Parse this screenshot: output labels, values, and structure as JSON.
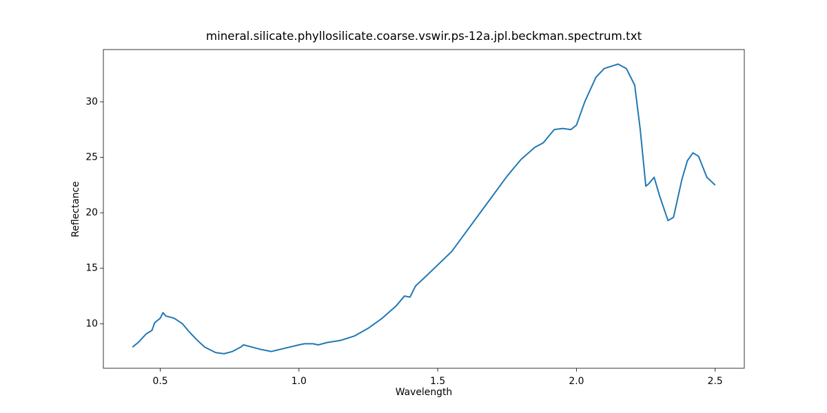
{
  "chart_data": {
    "type": "line",
    "title": "mineral.silicate.phyllosilicate.coarse.vswir.ps-12a.jpl.beckman.spectrum.txt",
    "x_label": "Wavelength",
    "y_label": "Reflectance",
    "x": [
      0.4,
      0.42,
      0.45,
      0.47,
      0.48,
      0.5,
      0.51,
      0.52,
      0.55,
      0.58,
      0.6,
      0.63,
      0.66,
      0.7,
      0.73,
      0.76,
      0.79,
      0.8,
      0.83,
      0.86,
      0.9,
      0.95,
      1.0,
      1.02,
      1.05,
      1.07,
      1.1,
      1.15,
      1.2,
      1.25,
      1.3,
      1.35,
      1.38,
      1.4,
      1.42,
      1.45,
      1.5,
      1.55,
      1.6,
      1.65,
      1.7,
      1.75,
      1.8,
      1.85,
      1.88,
      1.92,
      1.95,
      1.98,
      2.0,
      2.03,
      2.07,
      2.1,
      2.15,
      2.18,
      2.21,
      2.23,
      2.25,
      2.26,
      2.28,
      2.3,
      2.33,
      2.35,
      2.38,
      2.4,
      2.42,
      2.44,
      2.47,
      2.5
    ],
    "series": [
      {
        "name": "Reflectance",
        "color": "#1f77b4",
        "values": [
          7.9,
          8.3,
          9.1,
          9.4,
          10.1,
          10.5,
          11.0,
          10.7,
          10.5,
          10.0,
          9.4,
          8.6,
          7.9,
          7.4,
          7.3,
          7.5,
          7.9,
          8.1,
          7.9,
          7.7,
          7.5,
          7.8,
          8.1,
          8.2,
          8.2,
          8.1,
          8.3,
          8.5,
          8.9,
          9.6,
          10.5,
          11.6,
          12.5,
          12.4,
          13.4,
          14.1,
          15.3,
          16.5,
          18.2,
          19.9,
          21.6,
          23.3,
          24.8,
          25.9,
          26.3,
          27.5,
          27.6,
          27.5,
          27.9,
          30.0,
          32.2,
          33.0,
          33.4,
          33.0,
          31.5,
          27.5,
          22.4,
          22.6,
          23.2,
          21.5,
          19.3,
          19.6,
          23.0,
          24.7,
          25.4,
          25.1,
          23.2,
          22.5
        ]
      }
    ],
    "xlim": [
      0.295,
      2.605
    ],
    "ylim": [
      5.99,
      34.71
    ],
    "xticks": [
      0.5,
      1.0,
      1.5,
      2.0,
      2.5
    ],
    "xtick_labels": [
      "0.5",
      "1.0",
      "1.5",
      "2.0",
      "2.5"
    ],
    "yticks": [
      10,
      15,
      20,
      25,
      30
    ]
  }
}
